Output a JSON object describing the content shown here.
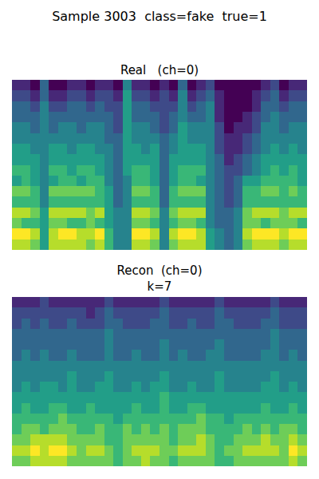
{
  "title": "Sample 3003  class=fake  true=1",
  "chart_data": [
    {
      "type": "heatmap",
      "title": "Real   (ch=0)",
      "tick_labels": false,
      "zlim": [
        0,
        9
      ],
      "cells": [
        [
          1,
          1,
          0,
          3,
          0,
          0,
          1,
          1,
          0,
          1,
          1,
          0,
          4,
          1,
          1,
          0,
          1,
          0,
          3,
          0,
          1,
          2,
          0,
          0,
          0,
          0,
          0,
          1,
          2,
          0,
          1,
          1
        ],
        [
          2,
          2,
          1,
          3,
          1,
          1,
          2,
          2,
          1,
          2,
          2,
          1,
          5,
          2,
          2,
          1,
          2,
          1,
          4,
          1,
          2,
          3,
          1,
          0,
          0,
          0,
          1,
          2,
          3,
          1,
          2,
          2
        ],
        [
          3,
          3,
          2,
          4,
          2,
          2,
          3,
          3,
          2,
          3,
          2,
          2,
          5,
          3,
          3,
          2,
          2,
          2,
          4,
          2,
          3,
          4,
          1,
          0,
          0,
          0,
          1,
          3,
          3,
          2,
          3,
          3
        ],
        [
          3,
          3,
          3,
          4,
          3,
          3,
          3,
          3,
          3,
          3,
          3,
          2,
          5,
          3,
          3,
          3,
          2,
          3,
          4,
          3,
          3,
          4,
          1,
          0,
          0,
          1,
          2,
          3,
          4,
          3,
          3,
          3
        ],
        [
          4,
          4,
          3,
          4,
          3,
          4,
          4,
          3,
          4,
          4,
          3,
          2,
          5,
          4,
          4,
          3,
          2,
          3,
          5,
          4,
          4,
          4,
          2,
          0,
          1,
          1,
          2,
          4,
          4,
          3,
          4,
          4
        ],
        [
          4,
          4,
          4,
          4,
          4,
          4,
          4,
          4,
          4,
          4,
          3,
          3,
          5,
          4,
          4,
          4,
          3,
          4,
          5,
          4,
          4,
          4,
          2,
          1,
          1,
          2,
          3,
          4,
          4,
          4,
          4,
          4
        ],
        [
          5,
          5,
          4,
          4,
          5,
          5,
          4,
          5,
          5,
          4,
          4,
          3,
          5,
          5,
          4,
          5,
          3,
          4,
          5,
          5,
          5,
          4,
          2,
          1,
          1,
          2,
          3,
          4,
          5,
          4,
          5,
          4
        ],
        [
          5,
          5,
          5,
          4,
          5,
          5,
          5,
          5,
          5,
          5,
          4,
          3,
          5,
          5,
          5,
          5,
          3,
          5,
          5,
          5,
          5,
          4,
          3,
          1,
          2,
          3,
          4,
          5,
          5,
          5,
          5,
          5
        ],
        [
          6,
          6,
          5,
          4,
          6,
          6,
          5,
          6,
          6,
          5,
          4,
          3,
          5,
          6,
          6,
          5,
          3,
          5,
          6,
          6,
          6,
          4,
          3,
          2,
          2,
          3,
          4,
          5,
          6,
          5,
          6,
          5
        ],
        [
          5,
          6,
          5,
          4,
          5,
          6,
          6,
          5,
          6,
          6,
          4,
          3,
          4,
          6,
          6,
          5,
          3,
          5,
          6,
          6,
          5,
          4,
          3,
          2,
          3,
          5,
          5,
          6,
          6,
          6,
          6,
          5
        ],
        [
          7,
          7,
          6,
          4,
          7,
          7,
          7,
          7,
          7,
          6,
          5,
          3,
          4,
          7,
          7,
          6,
          3,
          6,
          7,
          7,
          7,
          4,
          3,
          2,
          3,
          6,
          6,
          7,
          7,
          6,
          7,
          6
        ],
        [
          6,
          6,
          6,
          4,
          6,
          6,
          6,
          6,
          6,
          6,
          5,
          3,
          4,
          6,
          6,
          6,
          3,
          6,
          6,
          6,
          6,
          4,
          3,
          2,
          3,
          6,
          6,
          6,
          6,
          6,
          6,
          6
        ],
        [
          8,
          8,
          7,
          5,
          8,
          8,
          8,
          8,
          7,
          8,
          5,
          4,
          4,
          8,
          8,
          7,
          4,
          7,
          8,
          8,
          8,
          4,
          3,
          3,
          4,
          7,
          8,
          8,
          8,
          7,
          8,
          8
        ],
        [
          7,
          6,
          6,
          5,
          7,
          7,
          6,
          6,
          7,
          6,
          5,
          4,
          4,
          7,
          7,
          6,
          4,
          6,
          7,
          7,
          6,
          4,
          3,
          3,
          4,
          7,
          7,
          6,
          7,
          7,
          7,
          6
        ],
        [
          9,
          9,
          8,
          5,
          8,
          9,
          9,
          8,
          8,
          9,
          6,
          4,
          4,
          9,
          9,
          8,
          4,
          8,
          9,
          9,
          8,
          5,
          4,
          3,
          4,
          8,
          9,
          9,
          9,
          8,
          9,
          9
        ],
        [
          8,
          8,
          7,
          5,
          8,
          8,
          8,
          8,
          7,
          8,
          6,
          4,
          4,
          8,
          8,
          7,
          4,
          7,
          8,
          8,
          8,
          5,
          4,
          3,
          4,
          7,
          8,
          8,
          8,
          7,
          8,
          8
        ]
      ]
    },
    {
      "type": "heatmap",
      "title": "Recon  (ch=0)",
      "subtitle": "k=7",
      "tick_labels": false,
      "zlim": [
        0,
        9
      ],
      "cells": [
        [
          1,
          1,
          1,
          2,
          1,
          1,
          1,
          1,
          1,
          1,
          2,
          1,
          1,
          1,
          1,
          1,
          2,
          1,
          1,
          1,
          1,
          1,
          2,
          1,
          1,
          1,
          1,
          1,
          2,
          1,
          1,
          1
        ],
        [
          2,
          2,
          2,
          2,
          2,
          2,
          2,
          2,
          1,
          2,
          3,
          2,
          2,
          2,
          2,
          2,
          3,
          2,
          2,
          2,
          2,
          2,
          3,
          2,
          2,
          2,
          2,
          2,
          3,
          2,
          2,
          2
        ],
        [
          2,
          3,
          2,
          3,
          2,
          2,
          3,
          2,
          2,
          2,
          3,
          3,
          2,
          2,
          2,
          3,
          3,
          2,
          2,
          3,
          2,
          2,
          3,
          3,
          2,
          2,
          2,
          3,
          3,
          2,
          2,
          2
        ],
        [
          3,
          3,
          3,
          3,
          3,
          3,
          3,
          3,
          3,
          3,
          4,
          3,
          3,
          3,
          3,
          3,
          3,
          3,
          3,
          3,
          3,
          3,
          3,
          3,
          3,
          3,
          3,
          3,
          4,
          3,
          3,
          3
        ],
        [
          3,
          3,
          3,
          3,
          3,
          3,
          3,
          3,
          3,
          3,
          4,
          3,
          3,
          3,
          3,
          3,
          4,
          3,
          3,
          3,
          3,
          3,
          4,
          3,
          3,
          3,
          3,
          3,
          4,
          3,
          3,
          3
        ],
        [
          3,
          4,
          3,
          4,
          3,
          3,
          4,
          3,
          3,
          3,
          4,
          3,
          3,
          4,
          3,
          3,
          4,
          3,
          4,
          3,
          3,
          4,
          4,
          3,
          3,
          3,
          3,
          4,
          4,
          3,
          4,
          3
        ],
        [
          4,
          4,
          4,
          4,
          4,
          4,
          4,
          4,
          4,
          4,
          4,
          4,
          4,
          4,
          4,
          4,
          4,
          4,
          4,
          4,
          4,
          4,
          4,
          4,
          4,
          4,
          4,
          4,
          4,
          4,
          4,
          4
        ],
        [
          4,
          4,
          4,
          4,
          4,
          4,
          5,
          4,
          4,
          4,
          5,
          4,
          4,
          4,
          4,
          4,
          5,
          4,
          4,
          4,
          4,
          4,
          5,
          4,
          4,
          4,
          4,
          4,
          5,
          4,
          4,
          4
        ],
        [
          4,
          5,
          4,
          5,
          5,
          4,
          5,
          4,
          4,
          5,
          5,
          4,
          4,
          5,
          4,
          5,
          5,
          4,
          4,
          5,
          4,
          4,
          5,
          4,
          4,
          4,
          4,
          5,
          5,
          4,
          5,
          4
        ],
        [
          5,
          5,
          5,
          5,
          5,
          5,
          5,
          5,
          5,
          5,
          5,
          5,
          5,
          5,
          5,
          5,
          6,
          5,
          5,
          5,
          5,
          5,
          5,
          5,
          5,
          5,
          5,
          5,
          5,
          5,
          5,
          5
        ],
        [
          5,
          6,
          5,
          5,
          6,
          6,
          5,
          5,
          6,
          5,
          5,
          5,
          5,
          6,
          5,
          5,
          6,
          5,
          5,
          6,
          6,
          5,
          5,
          5,
          5,
          5,
          5,
          6,
          5,
          5,
          6,
          5
        ],
        [
          6,
          6,
          6,
          6,
          6,
          7,
          6,
          6,
          6,
          6,
          6,
          5,
          6,
          6,
          6,
          6,
          6,
          6,
          6,
          6,
          7,
          6,
          6,
          5,
          6,
          6,
          6,
          6,
          6,
          6,
          6,
          6
        ],
        [
          6,
          7,
          7,
          6,
          7,
          7,
          7,
          6,
          6,
          7,
          6,
          6,
          7,
          6,
          7,
          6,
          7,
          6,
          7,
          7,
          7,
          6,
          6,
          6,
          6,
          7,
          6,
          7,
          6,
          7,
          7,
          6
        ],
        [
          7,
          7,
          8,
          8,
          8,
          8,
          7,
          7,
          7,
          7,
          6,
          6,
          7,
          7,
          7,
          7,
          7,
          6,
          7,
          7,
          8,
          7,
          6,
          6,
          7,
          7,
          7,
          8,
          7,
          7,
          8,
          7
        ],
        [
          8,
          8,
          9,
          8,
          9,
          9,
          8,
          7,
          8,
          8,
          7,
          6,
          7,
          8,
          8,
          8,
          7,
          7,
          8,
          8,
          8,
          7,
          6,
          7,
          7,
          8,
          8,
          8,
          8,
          7,
          9,
          8
        ],
        [
          7,
          7,
          8,
          8,
          8,
          8,
          7,
          7,
          7,
          7,
          7,
          6,
          7,
          7,
          8,
          7,
          7,
          6,
          7,
          7,
          7,
          7,
          6,
          6,
          7,
          7,
          7,
          7,
          7,
          7,
          8,
          7
        ]
      ]
    }
  ]
}
